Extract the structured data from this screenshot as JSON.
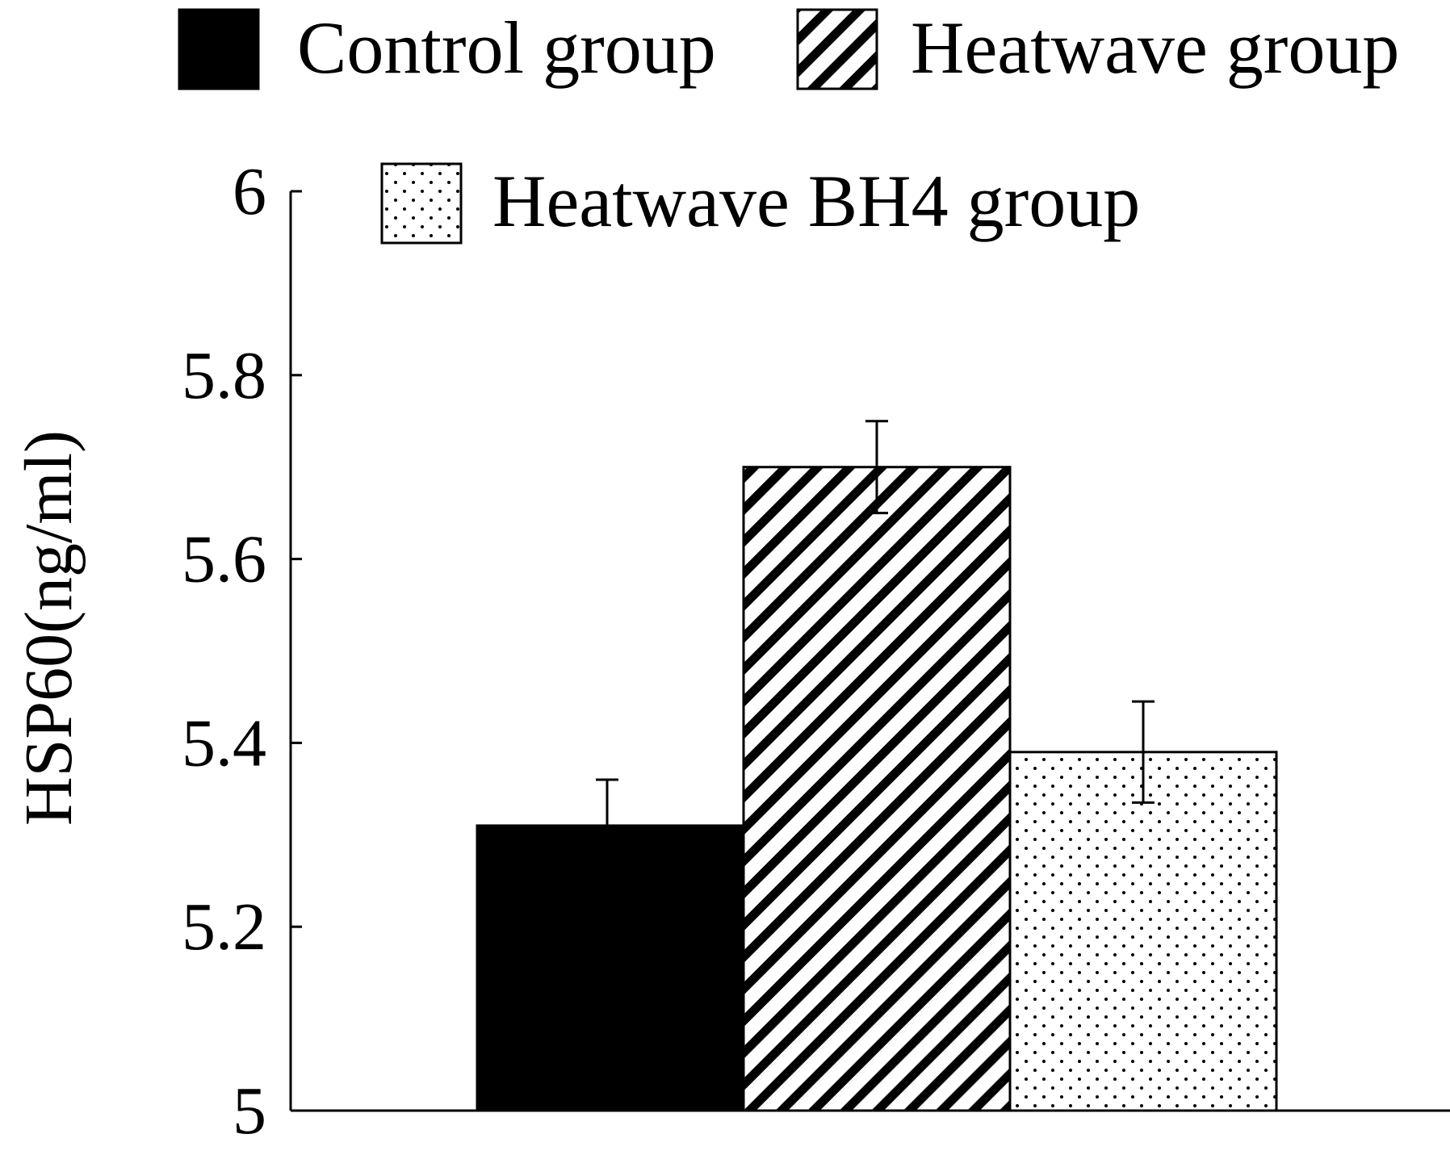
{
  "chart_data": {
    "type": "bar",
    "title": "",
    "xlabel": "",
    "ylabel": "HSP60(ng/ml)",
    "ylim": [
      5,
      6
    ],
    "yticks": [
      "5",
      "5.2",
      "5.4",
      "5.6",
      "5.8",
      "6"
    ],
    "categories": [
      ""
    ],
    "series": [
      {
        "name": "Control group",
        "values": [
          5.31
        ],
        "error": [
          0.05
        ],
        "fill": "solid",
        "color": "#000000"
      },
      {
        "name": "Heatwave group",
        "values": [
          5.7
        ],
        "error": [
          0.05
        ],
        "fill": "diagonal-stripes",
        "color": "#000000"
      },
      {
        "name": "Heatwave BH4 group",
        "values": [
          5.39
        ],
        "error": [
          0.055
        ],
        "fill": "dots",
        "color": "#000000"
      }
    ],
    "error_bars": true,
    "grid": false,
    "legend_position": "top"
  }
}
